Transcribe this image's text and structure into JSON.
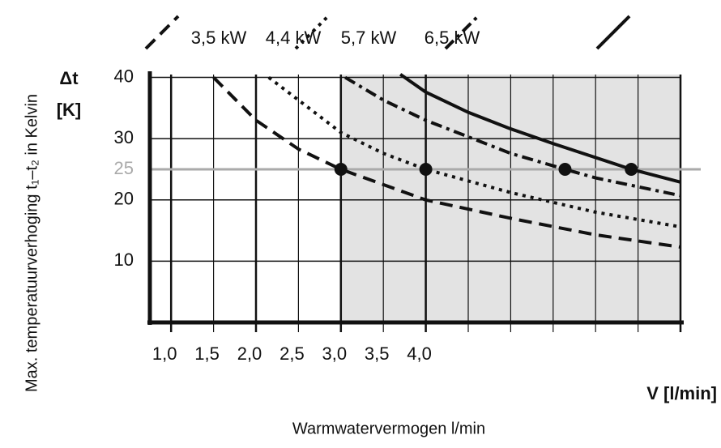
{
  "chart_data": {
    "type": "line",
    "y_label": "Max. temperatuurverhoging t₁–t₂ in Kelvin",
    "y_symbol": "Δt",
    "y_unit": "[K]",
    "x_label": "V [l/min]",
    "caption": "Warmwatervermogen l/min",
    "xlim": [
      0.75,
      7.0
    ],
    "ylim": [
      0,
      41
    ],
    "yticks": [
      10,
      20,
      30,
      40
    ],
    "xticks": [
      {
        "value": 1.0,
        "label": "1,0"
      },
      {
        "value": 1.5,
        "label": "1,5"
      },
      {
        "value": 2.0,
        "label": "2,0"
      },
      {
        "value": 2.5,
        "label": "2,5"
      },
      {
        "value": 3.0,
        "label": "3,0"
      },
      {
        "value": 3.5,
        "label": "3,5"
      },
      {
        "value": 4.0,
        "label": "4,0"
      }
    ],
    "xgrid": [
      4.5,
      5.0,
      5.5,
      6.0,
      6.5,
      7.0
    ],
    "reference_line": 25,
    "reference_color": "#aaaaaa",
    "shaded_xrange": [
      3.0,
      7.0
    ],
    "shade_color": "#e3e3e3",
    "grid": true,
    "series": [
      {
        "name": "3,5 kW",
        "color": "#111111",
        "dash": "dashed",
        "x": [
          1.5,
          2.0,
          2.5,
          3.0,
          4.0,
          5.0,
          6.0,
          7.0
        ],
        "values": [
          40,
          33,
          28.3,
          25,
          20,
          17,
          14.3,
          12.3
        ],
        "marker_x": 3.0,
        "marker_y": 25
      },
      {
        "name": "4,4 kW",
        "color": "#111111",
        "dash": "dotted",
        "x": [
          2.15,
          2.5,
          3.0,
          3.5,
          4.0,
          5.0,
          6.0,
          7.0
        ],
        "values": [
          40,
          36.3,
          31,
          27.6,
          25,
          21.2,
          18,
          15.6
        ],
        "marker_x": 4.0,
        "marker_y": 25
      },
      {
        "name": "5,7 kW",
        "color": "#111111",
        "dash": "dashdot",
        "x": [
          3.05,
          3.5,
          4.0,
          4.5,
          5.0,
          5.64,
          6.0,
          7.0
        ],
        "values": [
          40,
          36.3,
          33,
          30.3,
          27.6,
          25,
          23.6,
          20.7
        ],
        "marker_x": 5.64,
        "marker_y": 25
      },
      {
        "name": "6,5 kW",
        "color": "#111111",
        "dash": "solid",
        "x": [
          3.7,
          4.0,
          4.5,
          5.0,
          5.5,
          6.42,
          7.0
        ],
        "values": [
          40.5,
          37.6,
          34.3,
          31.6,
          29.2,
          25,
          22.9
        ],
        "marker_x": 6.42,
        "marker_y": 25
      }
    ]
  }
}
